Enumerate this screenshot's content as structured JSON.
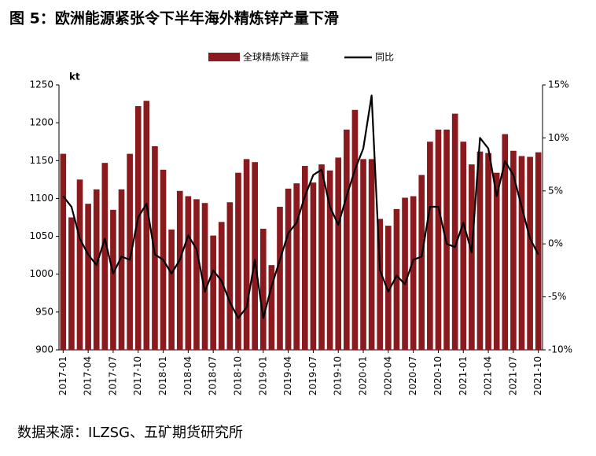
{
  "chart_data": {
    "type": "bar-line",
    "title": "图 5：欧洲能源紧张令下半年海外精炼锌产量下滑",
    "y_unit": "kt",
    "source": "数据来源：ILZSG、五矿期货研究所",
    "categories": [
      "2017-01",
      null,
      null,
      "2017-04",
      null,
      null,
      "2017-07",
      null,
      null,
      "2017-10",
      null,
      null,
      "2018-01",
      null,
      null,
      "2018-04",
      null,
      null,
      "2018-07",
      null,
      null,
      "2018-10",
      null,
      null,
      "2019-01",
      null,
      null,
      "2019-04",
      null,
      null,
      "2019-07",
      null,
      null,
      "2019-10",
      null,
      null,
      "2020-01",
      null,
      null,
      "2020-04",
      null,
      null,
      "2020-07",
      null,
      null,
      "2020-10",
      null,
      null,
      "2021-01",
      null,
      null,
      "2021-04",
      null,
      null,
      "2021-07",
      null,
      null,
      "2021-10"
    ],
    "series": [
      {
        "name": "全球精炼锌产量",
        "color": "#8b1a1f",
        "values": [
          1159,
          1075,
          1125,
          1093,
          1112,
          1147,
          1085,
          1112,
          1159,
          1222,
          1229,
          1169,
          1138,
          1059,
          1110,
          1103,
          1099,
          1094,
          1051,
          1069,
          1095,
          1134,
          1152,
          1148,
          1060,
          1012,
          1089,
          1113,
          1120,
          1143,
          1121,
          1145,
          1137,
          1154,
          1191,
          1217,
          1152,
          1152,
          1073,
          1064,
          1086,
          1101,
          1103,
          1131,
          1175,
          1191,
          1191,
          1212,
          1175,
          1145,
          1162,
          1160,
          1134,
          1185,
          1163,
          1156,
          1155,
          1161
        ]
      },
      {
        "name": "同比",
        "color": "#000000",
        "axis": "y2",
        "values": [
          4.5,
          3.5,
          0.5,
          -1,
          -2,
          0.5,
          -2.8,
          -1.2,
          -1.5,
          2.5,
          3.8,
          -1,
          -1.5,
          -2.8,
          -1.5,
          0.8,
          -0.5,
          -4.5,
          -2.5,
          -3.5,
          -5.5,
          -7,
          -6,
          -1.5,
          -7,
          -4,
          -1.5,
          1,
          2,
          4.5,
          6.5,
          7,
          3.5,
          1.8,
          4.5,
          7,
          9,
          14,
          -2.5,
          -4.5,
          -3,
          -3.8,
          -1.5,
          -1.2,
          3.5,
          3.5,
          0,
          -0.3,
          2,
          -0.8,
          10,
          9,
          4.5,
          7.8,
          6.5,
          3.5,
          0.5,
          -1
        ]
      }
    ],
    "ylim": [
      900,
      1250
    ],
    "yticks": [
      900,
      950,
      1000,
      1050,
      1100,
      1150,
      1200,
      1250
    ],
    "y2lim": [
      -10,
      15
    ],
    "y2ticks": [
      {
        "value": -10,
        "label": "-10%"
      },
      {
        "value": -5,
        "label": "-5%"
      },
      {
        "value": 0,
        "label": "0%"
      },
      {
        "value": 5,
        "label": "5%"
      },
      {
        "value": 10,
        "label": "10%"
      },
      {
        "value": 15,
        "label": "15%"
      }
    ]
  }
}
